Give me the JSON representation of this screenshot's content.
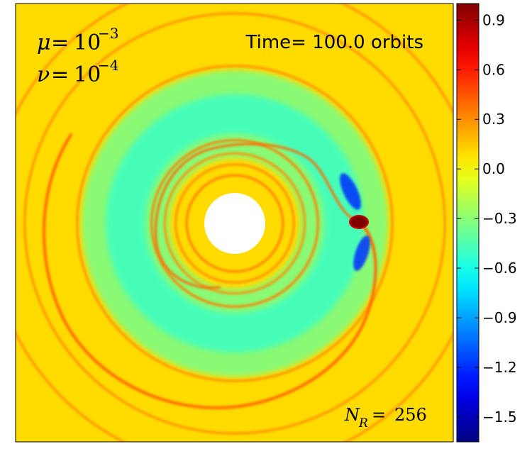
{
  "chart_data": {
    "type": "heatmap",
    "title": "",
    "annotations": {
      "mu": {
        "symbol": "μ",
        "rel": "=",
        "base": "10",
        "exp": "−3"
      },
      "nu": {
        "symbol": "ν",
        "rel": "=",
        "base": "10",
        "exp": "−4"
      },
      "time": "Time= 100.0 orbits",
      "nr": {
        "symbol": "N",
        "sub": "R",
        "rel": " =",
        "value": "256"
      }
    },
    "colorbar": {
      "colormap": "jet",
      "range": [
        -1.65,
        1.0
      ],
      "ticks": [
        0.9,
        0.6,
        0.3,
        0.0,
        -0.3,
        -0.6,
        -0.9,
        -1.2,
        -1.5
      ],
      "tick_labels": [
        "0.9",
        "0.6",
        "0.3",
        "0.0",
        "−0.3",
        "−0.6",
        "−0.9",
        "−1.2",
        "−1.5"
      ]
    },
    "background_value": 0.1,
    "rings": [
      {
        "r": 0.11,
        "value": 0.35
      },
      {
        "r": 0.135,
        "value": 0.3
      },
      {
        "r": 0.16,
        "value": 0.3
      },
      {
        "r": 0.19,
        "value": 0.35
      },
      {
        "r": 0.36,
        "value": 0.3
      },
      {
        "r": 0.48,
        "value": 0.3
      },
      {
        "r": 0.56,
        "value": 0.3
      }
    ],
    "gap_center_value": -0.35,
    "planet_value": 1.0,
    "negative_lobes_value": -1.2
  }
}
